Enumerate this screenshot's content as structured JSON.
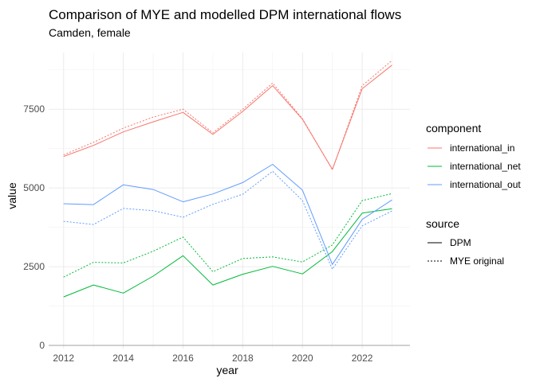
{
  "chart_data": {
    "type": "line",
    "title": "Comparison of MYE and modelled DPM international flows",
    "subtitle": "Camden, female",
    "xlabel": "year",
    "ylabel": "value",
    "x": [
      2012,
      2013,
      2014,
      2015,
      2016,
      2017,
      2018,
      2019,
      2020,
      2021,
      2022,
      2023
    ],
    "xticks": [
      "2012",
      "2014",
      "2016",
      "2018",
      "2020",
      "2022"
    ],
    "yticks": [
      "0",
      "2500",
      "5000",
      "7500"
    ],
    "ylim": [
      -100,
      9300
    ],
    "xlim": [
      2011.5,
      2023.6
    ],
    "grid": true,
    "legend_position": "right",
    "legends": {
      "component": {
        "title": "component",
        "entries": [
          {
            "label": "international_in",
            "color": "#F8766D"
          },
          {
            "label": "international_net",
            "color": "#00BA38"
          },
          {
            "label": "international_out",
            "color": "#619CFF"
          }
        ]
      },
      "source": {
        "title": "source",
        "entries": [
          {
            "label": "DPM",
            "linetype": "solid"
          },
          {
            "label": "MYE original",
            "linetype": "dotted"
          }
        ]
      }
    },
    "series": [
      {
        "component": "international_in",
        "source": "DPM",
        "color": "#F8766D",
        "linetype": "solid",
        "values": [
          6000,
          6350,
          6780,
          7100,
          7400,
          6700,
          7430,
          8250,
          7180,
          5590,
          8150,
          8900
        ]
      },
      {
        "component": "international_in",
        "source": "MYE original",
        "color": "#F8766D",
        "linetype": "dotted",
        "values": [
          6050,
          6450,
          6900,
          7250,
          7500,
          6750,
          7500,
          8330,
          7200,
          5580,
          8250,
          9050
        ]
      },
      {
        "component": "international_net",
        "source": "DPM",
        "color": "#00BA38",
        "linetype": "solid",
        "values": [
          1540,
          1920,
          1660,
          2200,
          2850,
          1920,
          2260,
          2510,
          2270,
          2980,
          4200,
          4340
        ]
      },
      {
        "component": "international_net",
        "source": "MYE original",
        "color": "#00BA38",
        "linetype": "dotted",
        "values": [
          2170,
          2640,
          2620,
          2990,
          3440,
          2340,
          2760,
          2810,
          2650,
          3190,
          4600,
          4820
        ]
      },
      {
        "component": "international_out",
        "source": "DPM",
        "color": "#619CFF",
        "linetype": "solid",
        "values": [
          4500,
          4470,
          5100,
          4950,
          4560,
          4810,
          5170,
          5750,
          4930,
          2570,
          4000,
          4620
        ]
      },
      {
        "component": "international_out",
        "source": "MYE original",
        "color": "#619CFF",
        "linetype": "dotted",
        "values": [
          3940,
          3840,
          4350,
          4280,
          4070,
          4480,
          4800,
          5530,
          4600,
          2420,
          3800,
          4270
        ]
      }
    ]
  }
}
